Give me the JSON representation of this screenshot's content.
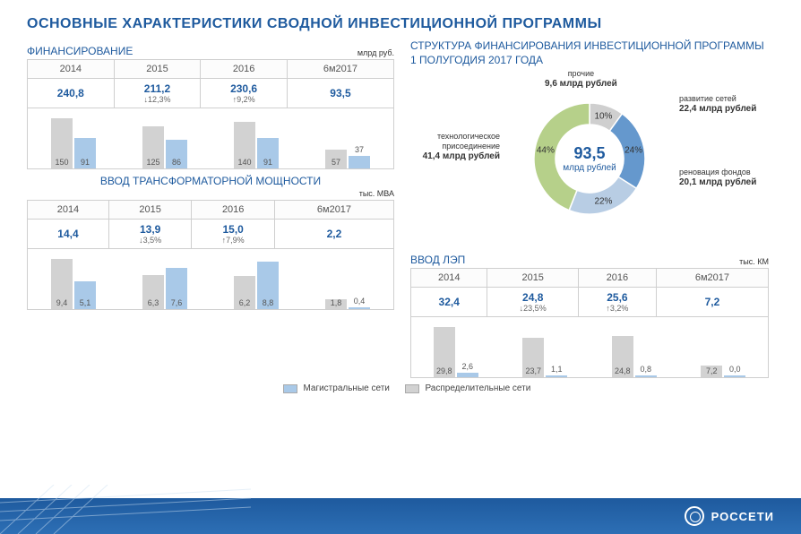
{
  "title": "ОСНОВНЫЕ ХАРАКТЕРИСТИКИ СВОДНОЙ ИНВЕСТИЦИОННОЙ ПРОГРАММЫ",
  "colors": {
    "main_blue": "#1e5a9e",
    "bar_light": "#a9c9e8",
    "bar_gray": "#d2d2d2",
    "donut_blue1": "#6598cd",
    "donut_blue2": "#b8cde4",
    "donut_green": "#b6d08a",
    "donut_gray": "#cfcfcf"
  },
  "legend": {
    "series1": "Магистральные сети",
    "series2": "Распределительные сети"
  },
  "financing": {
    "title": "ФИНАНСИРОВАНИЕ",
    "unit": "млрд руб.",
    "years": [
      "2014",
      "2015",
      "2016",
      "6м2017"
    ],
    "totals": [
      {
        "v": "240,8",
        "d": ""
      },
      {
        "v": "211,2",
        "d": "↓12,3%"
      },
      {
        "v": "230,6",
        "d": "↑9,2%"
      },
      {
        "v": "93,5",
        "d": ""
      }
    ],
    "bars": {
      "s1": [
        150,
        125,
        140,
        57
      ],
      "s2": [
        91,
        86,
        91,
        37
      ],
      "ymax": 160
    }
  },
  "transformer": {
    "title": "ВВОД ТРАНСФОРМАТОРНОЙ МОЩНОСТИ",
    "unit": "тыс. МВА",
    "years": [
      "2014",
      "2015",
      "2016",
      "6м2017"
    ],
    "totals": [
      {
        "v": "14,4",
        "d": ""
      },
      {
        "v": "13,9",
        "d": "↓3,5%"
      },
      {
        "v": "15,0",
        "d": "↑7,9%"
      },
      {
        "v": "2,2",
        "d": ""
      }
    ],
    "bars": {
      "s1": [
        9.4,
        6.3,
        6.2,
        1.8
      ],
      "s2": [
        5.1,
        7.6,
        8.8,
        0.4
      ],
      "ymax": 10,
      "labels_s1": [
        "9,4",
        "6,3",
        "6,2",
        "1,8"
      ],
      "labels_s2": [
        "5,1",
        "7,6",
        "8,8",
        "0,4"
      ]
    }
  },
  "lep": {
    "title": "ВВОД ЛЭП",
    "unit": "тыс. КМ",
    "years": [
      "2014",
      "2015",
      "2016",
      "6м2017"
    ],
    "totals": [
      {
        "v": "32,4",
        "d": ""
      },
      {
        "v": "24,8",
        "d": "↓23,5%"
      },
      {
        "v": "25,6",
        "d": "↑3,2%"
      },
      {
        "v": "7,2",
        "d": ""
      }
    ],
    "bars": {
      "s1": [
        29.8,
        23.7,
        24.8,
        7.2
      ],
      "s2": [
        2.6,
        1.1,
        0.8,
        0.0
      ],
      "ymax": 32,
      "labels_s1": [
        "29,8",
        "23,7",
        "24,8",
        "7,2"
      ],
      "labels_s2": [
        "2,6",
        "1,1",
        "0,8",
        "0,0"
      ]
    }
  },
  "donut": {
    "title": "СТРУКТУРА ФИНАНСИРОВАНИЯ ИНВЕСТИЦИОННОЙ ПРОГРАММЫ 1 ПОЛУГОДИЯ 2017 ГОДА",
    "center_value": "93,5",
    "center_unit": "млрд рублей",
    "slices": [
      {
        "label": "развитие сетей",
        "value": "22,4 млрд рублей",
        "pct": "24%",
        "pct_n": 24,
        "color": "#6598cd"
      },
      {
        "label": "реновация фондов",
        "value": "20,1 млрд рублей",
        "pct": "22%",
        "pct_n": 22,
        "color": "#b8cde4"
      },
      {
        "label": "технологическое присоединение",
        "value": "41,4 млрд рублей",
        "pct": "44%",
        "pct_n": 44,
        "color": "#b6d08a"
      },
      {
        "label": "прочие",
        "value": "9,6 млрд рублей",
        "pct": "10%",
        "pct_n": 10,
        "color": "#cfcfcf"
      }
    ]
  },
  "footer": {
    "brand": "РОССЕТИ"
  }
}
